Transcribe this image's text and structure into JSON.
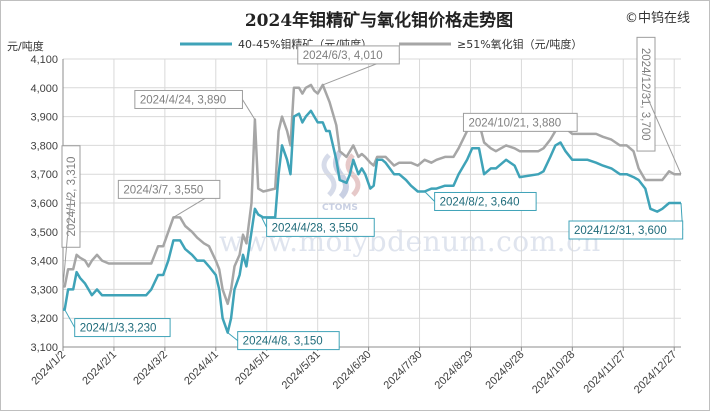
{
  "brand": "©中钨在线",
  "colors": {
    "concentrate": "#3fa3b8",
    "oxide": "#a6a6a6",
    "grid": "#d9d9d9",
    "ann_oxide_text": "#7f7f7f",
    "ann_conc_text": "#1f6b7a"
  },
  "chart_data": {
    "type": "line",
    "title": "2024年钼精矿与氧化钼价格走势图",
    "ylabel": "元/吨度",
    "ylim": [
      3100,
      4100
    ],
    "yticks": [
      3100,
      3200,
      3300,
      3400,
      3500,
      3600,
      3700,
      3800,
      3900,
      4000,
      4100
    ],
    "ytick_labels": [
      "3,100",
      "3,200",
      "3,300",
      "3,400",
      "3,500",
      "3,600",
      "3,700",
      "3,800",
      "3,900",
      "4,000",
      "4,100"
    ],
    "xticks": [
      "2024/1/2",
      "2024/2/1",
      "2024/3/2",
      "2024/4/1",
      "2024/5/1",
      "2024/5/31",
      "2024/6/30",
      "2024/7/30",
      "2024/8/29",
      "2024/9/28",
      "2024/10/28",
      "2024/11/27",
      "2024/12/27"
    ],
    "legend": "top",
    "grid": true,
    "series": [
      {
        "name": "40-45%钼精矿（元/吨度）",
        "x": [
          "2024/1/2",
          "2024/1/3",
          "2024/1/5",
          "2024/1/8",
          "2024/1/10",
          "2024/1/12",
          "2024/1/15",
          "2024/1/17",
          "2024/1/19",
          "2024/1/22",
          "2024/1/25",
          "2024/1/29",
          "2024/2/1",
          "2024/2/6",
          "2024/2/20",
          "2024/2/23",
          "2024/2/27",
          "2024/3/1",
          "2024/3/4",
          "2024/3/7",
          "2024/3/11",
          "2024/3/14",
          "2024/3/18",
          "2024/3/21",
          "2024/3/25",
          "2024/3/28",
          "2024/4/1",
          "2024/4/3",
          "2024/4/5",
          "2024/4/8",
          "2024/4/10",
          "2024/4/12",
          "2024/4/15",
          "2024/4/17",
          "2024/4/19",
          "2024/4/22",
          "2024/4/24",
          "2024/4/26",
          "2024/4/29",
          "2024/5/6",
          "2024/5/8",
          "2024/5/10",
          "2024/5/13",
          "2024/5/15",
          "2024/5/17",
          "2024/5/20",
          "2024/5/22",
          "2024/5/24",
          "2024/5/27",
          "2024/5/29",
          "2024/5/31",
          "2024/6/3",
          "2024/6/5",
          "2024/6/7",
          "2024/6/11",
          "2024/6/13",
          "2024/6/17",
          "2024/6/19",
          "2024/6/21",
          "2024/6/24",
          "2024/6/26",
          "2024/6/28",
          "2024/7/1",
          "2024/7/3",
          "2024/7/5",
          "2024/7/8",
          "2024/7/10",
          "2024/7/15",
          "2024/7/18",
          "2024/7/22",
          "2024/7/25",
          "2024/7/29",
          "2024/8/2",
          "2024/8/6",
          "2024/8/9",
          "2024/8/14",
          "2024/8/19",
          "2024/8/22",
          "2024/8/27",
          "2024/8/30",
          "2024/9/3",
          "2024/9/6",
          "2024/9/10",
          "2024/9/13",
          "2024/9/19",
          "2024/9/24",
          "2024/9/27",
          "2024/10/8",
          "2024/10/11",
          "2024/10/15",
          "2024/10/18",
          "2024/10/21",
          "2024/10/24",
          "2024/10/28",
          "2024/11/1",
          "2024/11/6",
          "2024/11/11",
          "2024/11/15",
          "2024/11/20",
          "2024/11/25",
          "2024/11/29",
          "2024/12/3",
          "2024/12/6",
          "2024/12/10",
          "2024/12/13",
          "2024/12/17",
          "2024/12/20",
          "2024/12/24",
          "2024/12/27",
          "2024/12/31"
        ],
        "values": [
          3230,
          3230,
          3300,
          3300,
          3360,
          3340,
          3320,
          3300,
          3280,
          3300,
          3280,
          3280,
          3280,
          3280,
          3280,
          3300,
          3350,
          3350,
          3400,
          3470,
          3470,
          3440,
          3420,
          3400,
          3400,
          3380,
          3350,
          3300,
          3200,
          3150,
          3200,
          3300,
          3350,
          3420,
          3380,
          3500,
          3580,
          3560,
          3550,
          3550,
          3700,
          3800,
          3750,
          3700,
          3900,
          3910,
          3880,
          3900,
          3920,
          3900,
          3880,
          3880,
          3850,
          3850,
          3750,
          3680,
          3670,
          3700,
          3750,
          3700,
          3720,
          3700,
          3650,
          3660,
          3750,
          3750,
          3740,
          3700,
          3700,
          3680,
          3660,
          3640,
          3640,
          3650,
          3650,
          3660,
          3660,
          3700,
          3750,
          3790,
          3790,
          3700,
          3720,
          3720,
          3750,
          3730,
          3690,
          3700,
          3710,
          3760,
          3800,
          3810,
          3780,
          3750,
          3750,
          3750,
          3740,
          3730,
          3720,
          3700,
          3700,
          3690,
          3680,
          3650,
          3580,
          3570,
          3580,
          3600,
          3600,
          3600
        ]
      },
      {
        "name": "≥51%氧化钼（元/吨度）",
        "x": [
          "2024/1/2",
          "2024/1/3",
          "2024/1/5",
          "2024/1/8",
          "2024/1/10",
          "2024/1/12",
          "2024/1/15",
          "2024/1/17",
          "2024/1/19",
          "2024/1/22",
          "2024/1/25",
          "2024/1/29",
          "2024/2/1",
          "2024/2/6",
          "2024/2/20",
          "2024/2/23",
          "2024/2/27",
          "2024/3/1",
          "2024/3/4",
          "2024/3/7",
          "2024/3/11",
          "2024/3/14",
          "2024/3/18",
          "2024/3/21",
          "2024/3/25",
          "2024/3/28",
          "2024/4/1",
          "2024/4/3",
          "2024/4/5",
          "2024/4/8",
          "2024/4/10",
          "2024/4/12",
          "2024/4/15",
          "2024/4/17",
          "2024/4/19",
          "2024/4/22",
          "2024/4/24",
          "2024/4/26",
          "2024/4/29",
          "2024/5/6",
          "2024/5/8",
          "2024/5/10",
          "2024/5/13",
          "2024/5/15",
          "2024/5/17",
          "2024/5/20",
          "2024/5/22",
          "2024/5/24",
          "2024/5/27",
          "2024/5/29",
          "2024/5/31",
          "2024/6/3",
          "2024/6/5",
          "2024/6/7",
          "2024/6/11",
          "2024/6/13",
          "2024/6/17",
          "2024/6/19",
          "2024/6/21",
          "2024/6/24",
          "2024/6/26",
          "2024/6/28",
          "2024/7/1",
          "2024/7/3",
          "2024/7/5",
          "2024/7/8",
          "2024/7/10",
          "2024/7/15",
          "2024/7/18",
          "2024/7/22",
          "2024/7/25",
          "2024/7/29",
          "2024/8/2",
          "2024/8/6",
          "2024/8/9",
          "2024/8/14",
          "2024/8/19",
          "2024/8/22",
          "2024/8/27",
          "2024/8/30",
          "2024/9/3",
          "2024/9/6",
          "2024/9/10",
          "2024/9/13",
          "2024/9/19",
          "2024/9/24",
          "2024/9/27",
          "2024/10/8",
          "2024/10/11",
          "2024/10/15",
          "2024/10/18",
          "2024/10/21",
          "2024/10/24",
          "2024/10/28",
          "2024/11/1",
          "2024/11/6",
          "2024/11/11",
          "2024/11/15",
          "2024/11/20",
          "2024/11/25",
          "2024/11/29",
          "2024/12/3",
          "2024/12/6",
          "2024/12/10",
          "2024/12/13",
          "2024/12/17",
          "2024/12/20",
          "2024/12/24",
          "2024/12/27",
          "2024/12/31"
        ],
        "values": [
          3310,
          3310,
          3370,
          3370,
          3420,
          3410,
          3400,
          3380,
          3400,
          3420,
          3400,
          3390,
          3390,
          3390,
          3390,
          3390,
          3450,
          3450,
          3500,
          3550,
          3550,
          3520,
          3500,
          3480,
          3460,
          3450,
          3400,
          3370,
          3300,
          3250,
          3300,
          3380,
          3420,
          3490,
          3460,
          3600,
          3890,
          3650,
          3640,
          3650,
          3850,
          3900,
          3850,
          3800,
          4000,
          4000,
          3980,
          4000,
          4010,
          3990,
          3980,
          4010,
          3980,
          3950,
          3870,
          3780,
          3760,
          3780,
          3800,
          3760,
          3770,
          3760,
          3740,
          3730,
          3760,
          3760,
          3760,
          3730,
          3740,
          3740,
          3740,
          3730,
          3750,
          3740,
          3750,
          3760,
          3760,
          3790,
          3850,
          3880,
          3880,
          3810,
          3790,
          3780,
          3800,
          3790,
          3780,
          3780,
          3790,
          3820,
          3850,
          3880,
          3860,
          3840,
          3840,
          3840,
          3840,
          3830,
          3820,
          3800,
          3800,
          3780,
          3720,
          3680,
          3680,
          3680,
          3680,
          3710,
          3700,
          3700
        ]
      }
    ],
    "annotations": [
      {
        "series": 0,
        "x": "2024/1/3",
        "y": 3230,
        "label": "2024/1/3,3,230"
      },
      {
        "series": 0,
        "x": "2024/4/8",
        "y": 3150,
        "label": "2024/4/8, 3,150"
      },
      {
        "series": 0,
        "x": "2024/4/28",
        "y": 3550,
        "label": "2024/4/28, 3,550"
      },
      {
        "series": 0,
        "x": "2024/8/2",
        "y": 3640,
        "label": "2024/8/2, 3,640"
      },
      {
        "series": 0,
        "x": "2024/12/31",
        "y": 3600,
        "label": "2024/12/31, 3,600"
      },
      {
        "series": 1,
        "x": "2024/1/2",
        "y": 3310,
        "label": "2024/1/2, 3,310"
      },
      {
        "series": 1,
        "x": "2024/3/7",
        "y": 3550,
        "label": "2024/3/7, 3,550"
      },
      {
        "series": 1,
        "x": "2024/4/24",
        "y": 3890,
        "label": "2024/4/24, 3,890"
      },
      {
        "series": 1,
        "x": "2024/6/3",
        "y": 4010,
        "label": "2024/6/3, 4,010"
      },
      {
        "series": 1,
        "x": "2024/10/21",
        "y": 3880,
        "label": "2024/10/21, 3,880"
      },
      {
        "series": 1,
        "x": "2024/12/31",
        "y": 3700,
        "label": "2024/12/31, 3,700"
      }
    ]
  },
  "watermark": {
    "text": "www.molybdenum.com.cn",
    "logo_text": "CTOMS"
  }
}
